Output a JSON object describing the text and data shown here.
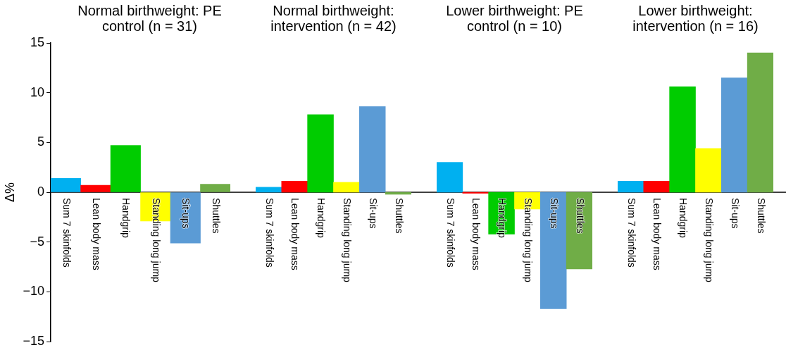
{
  "chart_data": [
    {
      "type": "bar",
      "title": "Normal birthweight: PE control (n = 31)",
      "ylabel": "Δ%",
      "categories": [
        "Sum 7 skinfolds",
        "Lean body mass",
        "Handgrip",
        "Standing long jump",
        "Sit-ups",
        "Shuttles"
      ],
      "values": [
        1.4,
        0.7,
        4.7,
        -2.9,
        -5.1,
        0.8
      ],
      "colors": [
        "#00b0f0",
        "#ff0000",
        "#00cc00",
        "#ffff00",
        "#5b9bd5",
        "#70ad47"
      ],
      "ylim": [
        -15,
        15
      ],
      "yticks": [
        {
          "value": -15,
          "label": "−15"
        },
        {
          "value": -10,
          "label": "−10"
        },
        {
          "value": -5,
          "label": "−5"
        },
        0,
        5,
        10,
        15
      ]
    },
    {
      "type": "bar",
      "title": "Normal birthweight: intervention (n = 42)",
      "categories": [
        "Sum 7 skinfolds",
        "Lean body mass",
        "Handgrip",
        "Standing long jump",
        "Sit-ups",
        "Shuttles"
      ],
      "values": [
        0.5,
        1.1,
        7.8,
        1.0,
        8.6,
        -0.2
      ],
      "colors": [
        "#00b0f0",
        "#ff0000",
        "#00cc00",
        "#ffff00",
        "#5b9bd5",
        "#70ad47"
      ],
      "ylim": [
        -15,
        15
      ],
      "tick_labels": "x"
    },
    {
      "type": "bar",
      "title": "Lower birthweight: PE control (n = 10)",
      "categories": [
        "Sum 7 skinfolds",
        "Lean body mass",
        "Handgrip",
        "Standing long jump",
        "Sit-ups",
        "Shuttles"
      ],
      "values": [
        3.0,
        -0.1,
        -4.2,
        -1.7,
        -11.7,
        -7.7
      ],
      "colors": [
        "#00b0f0",
        "#ff0000",
        "#00cc00",
        "#ffff00",
        "#5b9bd5",
        "#70ad47"
      ],
      "ylim": [
        -15,
        15
      ],
      "tick_labels": "x"
    },
    {
      "type": "bar",
      "title": "Lower birthweight: intervention (n = 16)",
      "categories": [
        "Sum 7 skinfolds",
        "Lean body mass",
        "Handgrip",
        "Standing long jump",
        "Sit-ups",
        "Shuttles"
      ],
      "values": [
        1.1,
        1.1,
        10.6,
        4.4,
        11.5,
        14.0
      ],
      "colors": [
        "#00b0f0",
        "#ff0000",
        "#00cc00",
        "#ffff00",
        "#5b9bd5",
        "#70ad47"
      ],
      "ylim": [
        -15,
        15
      ],
      "tick_labels": "x"
    }
  ]
}
